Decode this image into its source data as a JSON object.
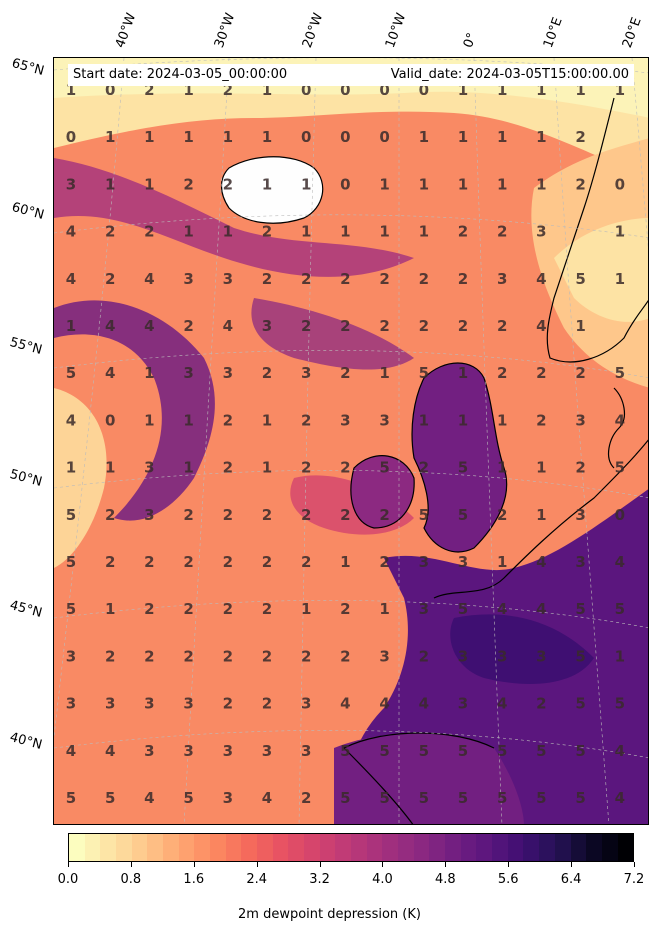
{
  "header": {
    "start_date": "Start date: 2024-03-05_00:00:00",
    "valid_date": "Valid_date: 2024-03-05T15:00:00.00"
  },
  "lat_labels": [
    "65°N",
    "60°N",
    "55°N",
    "50°N",
    "45°N",
    "40°N"
  ],
  "lon_labels": [
    "40°W",
    "30°W",
    "20°W",
    "10°W",
    "0°",
    "10°E",
    "20°E"
  ],
  "grid_values": [
    [
      1,
      0,
      2,
      1,
      2,
      1,
      0,
      0,
      0,
      0,
      1,
      1,
      1,
      1,
      1
    ],
    [
      0,
      1,
      1,
      1,
      1,
      1,
      0,
      0,
      0,
      1,
      1,
      1,
      1,
      2,
      null
    ],
    [
      3,
      1,
      1,
      2,
      2,
      1,
      1,
      0,
      1,
      1,
      1,
      1,
      1,
      2,
      0
    ],
    [
      4,
      2,
      2,
      1,
      1,
      2,
      1,
      1,
      1,
      1,
      2,
      2,
      3,
      null,
      1
    ],
    [
      4,
      2,
      4,
      3,
      3,
      2,
      2,
      2,
      2,
      2,
      2,
      3,
      4,
      5,
      1
    ],
    [
      1,
      4,
      4,
      2,
      4,
      3,
      2,
      2,
      2,
      2,
      2,
      2,
      4,
      1,
      null
    ],
    [
      5,
      4,
      1,
      3,
      3,
      2,
      3,
      2,
      1,
      5,
      1,
      2,
      2,
      2,
      5
    ],
    [
      4,
      0,
      1,
      1,
      2,
      1,
      2,
      3,
      3,
      1,
      1,
      1,
      2,
      3,
      4
    ],
    [
      1,
      1,
      3,
      1,
      2,
      1,
      2,
      2,
      5,
      2,
      5,
      1,
      1,
      2,
      5
    ],
    [
      5,
      2,
      3,
      2,
      2,
      2,
      2,
      2,
      2,
      5,
      5,
      2,
      1,
      3,
      0
    ],
    [
      5,
      2,
      2,
      2,
      2,
      2,
      2,
      1,
      2,
      3,
      3,
      1,
      4,
      3,
      4
    ],
    [
      5,
      1,
      2,
      2,
      2,
      2,
      1,
      2,
      1,
      3,
      5,
      4,
      4,
      5,
      5
    ],
    [
      3,
      2,
      2,
      2,
      2,
      2,
      2,
      2,
      3,
      2,
      3,
      3,
      3,
      5,
      1
    ],
    [
      3,
      3,
      3,
      3,
      2,
      2,
      3,
      4,
      4,
      4,
      3,
      4,
      2,
      5,
      5
    ],
    [
      4,
      4,
      3,
      3,
      3,
      3,
      3,
      5,
      5,
      5,
      5,
      5,
      5,
      5,
      4
    ],
    [
      5,
      5,
      4,
      5,
      3,
      4,
      2,
      5,
      5,
      5,
      5,
      5,
      5,
      5,
      4
    ]
  ],
  "colorbar": {
    "title": "2m dewpoint depression (K)",
    "ticks": [
      "0.0",
      "0.8",
      "1.6",
      "2.4",
      "3.2",
      "4.0",
      "4.8",
      "5.6",
      "6.4",
      "7.2"
    ],
    "colormap": "magma_r",
    "colors": [
      "#fcfdbf",
      "#fde3a4",
      "#fec78b",
      "#fea772",
      "#fc8961",
      "#f56b5c",
      "#e75263",
      "#d3436e",
      "#bc3978",
      "#a3307e",
      "#8c2981",
      "#721f81",
      "#5b167e",
      "#3f0f72",
      "#251255",
      "#0c0826",
      "#000004"
    ]
  }
}
